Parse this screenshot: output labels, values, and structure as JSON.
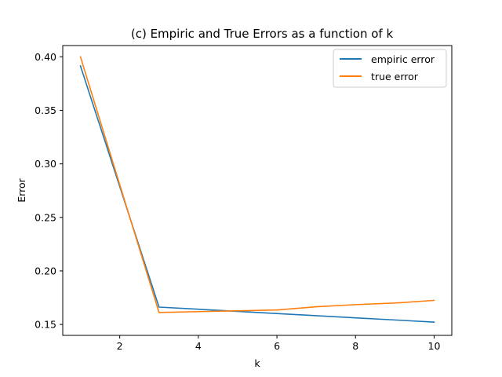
{
  "chart_data": {
    "type": "line",
    "title": "(c) Empiric and True Errors as a function of k",
    "xlabel": "k",
    "ylabel": "Error",
    "xlim": [
      0.55,
      10.45
    ],
    "ylim": [
      0.1398,
      0.4105
    ],
    "xticks": [
      2,
      4,
      6,
      8,
      10
    ],
    "yticks": [
      0.15,
      0.2,
      0.25,
      0.3,
      0.35,
      0.4
    ],
    "ytick_labels": [
      "0.15",
      "0.20",
      "0.25",
      "0.30",
      "0.35",
      "0.40"
    ],
    "grid": false,
    "legend": "top-right",
    "x": [
      1,
      3,
      6,
      7,
      8,
      9,
      10
    ],
    "series": [
      {
        "name": "empiric error",
        "color": "#1f77b4",
        "values": [
          0.3915,
          0.1662,
          0.1602,
          0.1582,
          0.1562,
          0.1542,
          0.1522
        ]
      },
      {
        "name": "true error",
        "color": "#ff7f0e",
        "values": [
          0.4,
          0.1612,
          0.1635,
          0.1665,
          0.1685,
          0.17,
          0.1725
        ]
      }
    ]
  }
}
